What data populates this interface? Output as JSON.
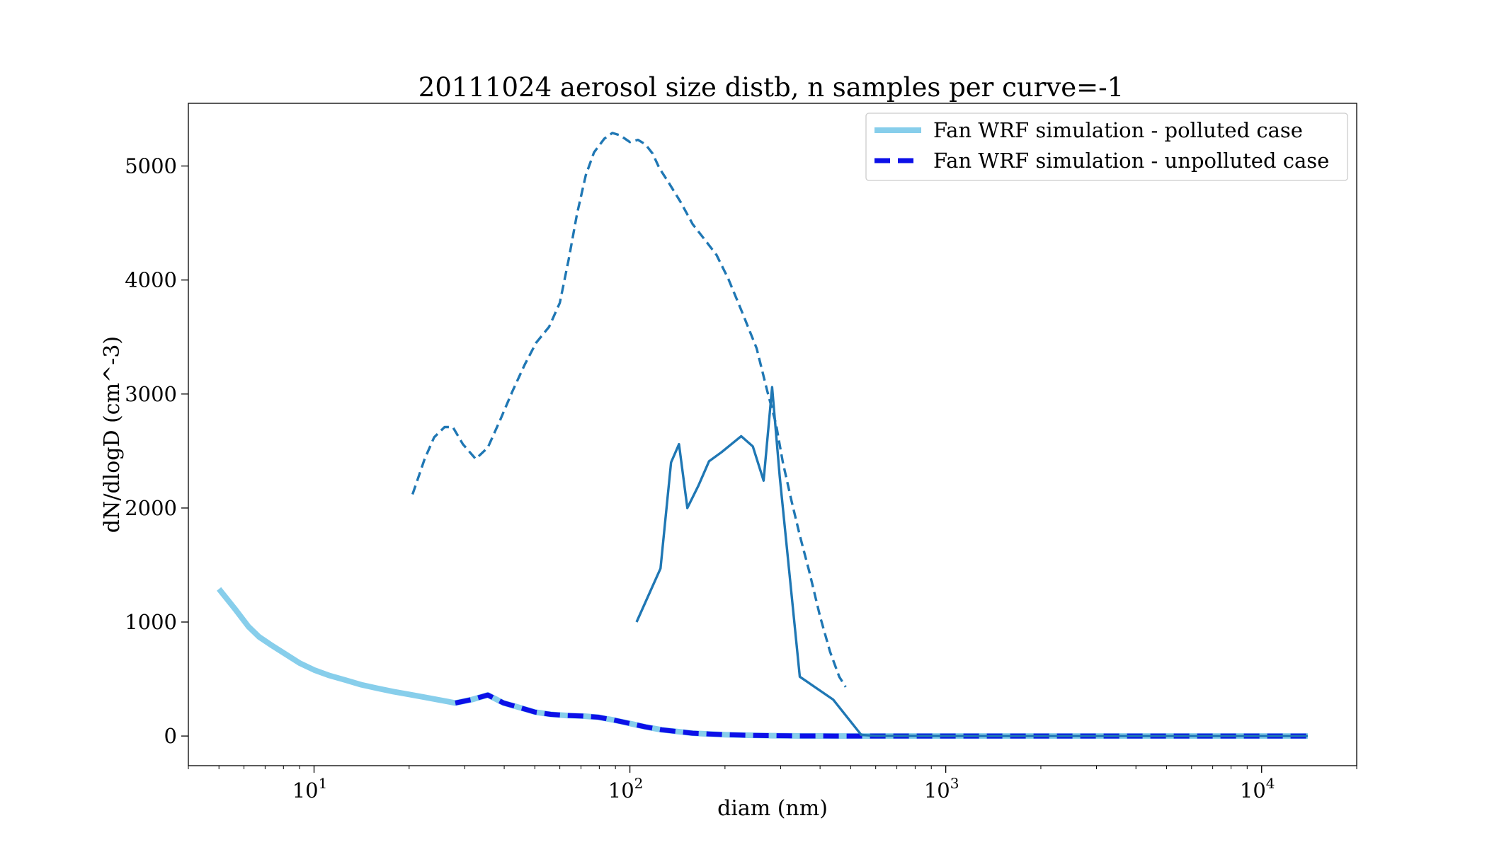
{
  "chart_data": {
    "type": "line",
    "title": "20111024 aerosol size distb, n samples per curve=-1",
    "xlabel": "diam (nm)",
    "ylabel": "dN/dlogD (cm^-3)",
    "xscale": "log",
    "xlim": [
      4.0,
      20000
    ],
    "ylim": [
      -260,
      5550
    ],
    "grid": false,
    "legend_position": "top-right",
    "x_ticks": [
      {
        "value": 10,
        "base": "10",
        "exp": "1"
      },
      {
        "value": 100,
        "base": "10",
        "exp": "2"
      },
      {
        "value": 1000,
        "base": "10",
        "exp": "3"
      },
      {
        "value": 10000,
        "base": "10",
        "exp": "4"
      }
    ],
    "y_ticks": [
      {
        "value": 0,
        "label": "0"
      },
      {
        "value": 1000,
        "label": "1000"
      },
      {
        "value": 2000,
        "label": "2000"
      },
      {
        "value": 3000,
        "label": "3000"
      },
      {
        "value": 4000,
        "label": "4000"
      },
      {
        "value": 5000,
        "label": "5000"
      }
    ],
    "series": [
      {
        "name": "Fan WRF simulation - polluted case",
        "color": "#87ceeb",
        "style": "solid",
        "in_legend": true,
        "x": [
          5.0,
          5.6,
          6.2,
          6.7,
          7.3,
          8.0,
          9.0,
          10.0,
          11.2,
          12.6,
          14.1,
          15.8,
          17.8,
          20.0,
          22.4,
          25.1,
          28.0,
          31.6,
          35.5,
          39.8,
          44.7,
          50.1,
          56.2,
          63.1,
          70.8,
          79.4,
          89.1,
          100,
          112,
          126,
          141,
          158,
          178,
          200,
          224,
          251,
          282,
          316,
          355,
          398,
          447,
          501,
          562,
          1000,
          2000,
          5000,
          14000
        ],
        "y": [
          1290,
          1120,
          960,
          870,
          800,
          730,
          640,
          580,
          530,
          490,
          450,
          420,
          390,
          365,
          340,
          315,
          290,
          320,
          360,
          290,
          250,
          210,
          190,
          180,
          175,
          165,
          140,
          110,
          80,
          55,
          40,
          25,
          18,
          12,
          8,
          5,
          3,
          2,
          1,
          1,
          0,
          0,
          0,
          0,
          0,
          0,
          0
        ]
      },
      {
        "name": "Fan WRF simulation - unpolluted case",
        "color": "#0c10e8",
        "style": "dashed",
        "in_legend": true,
        "x": [
          28.0,
          31.6,
          35.5,
          39.8,
          44.7,
          50.1,
          56.2,
          63.1,
          70.8,
          79.4,
          89.1,
          100,
          112,
          126,
          141,
          158,
          178,
          200,
          224,
          251,
          282,
          316,
          355,
          398,
          447,
          501,
          562,
          1000,
          2000,
          5000,
          14000
        ],
        "y": [
          290,
          320,
          360,
          290,
          250,
          210,
          190,
          180,
          175,
          165,
          140,
          110,
          80,
          55,
          40,
          25,
          18,
          12,
          8,
          5,
          3,
          2,
          1,
          1,
          0,
          0,
          0,
          0,
          0,
          0,
          0
        ]
      },
      {
        "color": "#1f77b4",
        "style": "dashed",
        "in_legend": false,
        "x": [
          20.5,
          22.4,
          24.0,
          25.9,
          27.5,
          29.6,
          32.5,
          35.5,
          38.8,
          42.4,
          46.5,
          50.5,
          55.5,
          60.0,
          64.0,
          68.0,
          72.5,
          77.0,
          83.0,
          88.0,
          93.0,
          100,
          106,
          112,
          118,
          124,
          133,
          145,
          158,
          173,
          188,
          205,
          228,
          252,
          272,
          290,
          305,
          325,
          345,
          370,
          400,
          430,
          460,
          482
        ],
        "y": [
          2120,
          2430,
          2620,
          2710,
          2710,
          2560,
          2430,
          2530,
          2770,
          3020,
          3260,
          3450,
          3590,
          3800,
          4180,
          4580,
          4920,
          5120,
          5240,
          5290,
          5270,
          5210,
          5230,
          5190,
          5110,
          4980,
          4850,
          4680,
          4490,
          4350,
          4220,
          4010,
          3700,
          3400,
          3030,
          2740,
          2400,
          2060,
          1760,
          1440,
          1050,
          740,
          520,
          430
        ]
      },
      {
        "color": "#1f77b4",
        "style": "solid",
        "in_legend": false,
        "x": [
          105,
          125,
          135,
          143,
          152,
          165,
          178,
          195,
          225,
          245,
          265,
          282,
          298,
          345,
          440,
          540,
          600,
          1000,
          2000,
          5000,
          14000
        ],
        "y": [
          1000,
          1470,
          2400,
          2560,
          2000,
          2200,
          2410,
          2490,
          2630,
          2540,
          2240,
          3060,
          2280,
          520,
          320,
          10,
          2,
          1,
          0,
          0,
          0
        ]
      }
    ]
  }
}
